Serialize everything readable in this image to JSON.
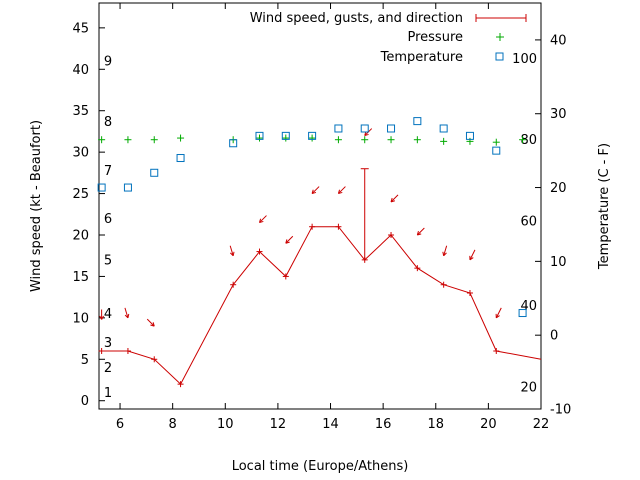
{
  "chart_data": {
    "type": "line",
    "xlabel": "Local time (Europe/Athens)",
    "ylabel": "Wind speed (kt - Beaufort)",
    "y2label": "Temperature (C - F)",
    "xlim": [
      5.2,
      22
    ],
    "ylim": [
      -1,
      48
    ],
    "y2lim": [
      -10,
      45
    ],
    "x_ticks": [
      6,
      8,
      10,
      12,
      14,
      16,
      18,
      20,
      22
    ],
    "y_ticks": [
      0,
      5,
      10,
      15,
      20,
      25,
      30,
      35,
      40,
      45
    ],
    "y2_ticks": [
      -10,
      0,
      10,
      20,
      30,
      40
    ],
    "beaufort_labels": [
      {
        "text": "1",
        "y": 1
      },
      {
        "text": "2",
        "y": 4
      },
      {
        "text": "3",
        "y": 7
      },
      {
        "text": "4",
        "y": 10.5
      },
      {
        "text": "5",
        "y": 17
      },
      {
        "text": "6",
        "y": 22
      },
      {
        "text": "7",
        "y": 27.8
      },
      {
        "text": "8",
        "y": 33.7
      },
      {
        "text": "9",
        "y": 41
      }
    ],
    "fahrenheit_labels": [
      {
        "text": "20",
        "y2": -7
      },
      {
        "text": "40",
        "y2": 4
      },
      {
        "text": "60",
        "y2": 15.5
      },
      {
        "text": "80",
        "y2": 26.5
      },
      {
        "text": "100",
        "y2": 37.5
      }
    ],
    "legend_position": "top-right",
    "series": [
      {
        "name": "Wind speed, gusts, and direction",
        "color": "#cc0000",
        "x": [
          5.3,
          6.3,
          7.3,
          8.3,
          10.3,
          11.3,
          12.3,
          13.3,
          14.3,
          15.3,
          16.3,
          17.3,
          18.3,
          19.3,
          20.3,
          22
        ],
        "y": [
          6,
          6,
          5,
          2,
          14,
          18,
          15,
          21,
          21,
          17,
          20,
          16,
          14,
          13,
          6,
          5
        ],
        "gusts": [
          {
            "x": 15.3,
            "from": 17,
            "to": 28
          }
        ],
        "direction_arrows": [
          {
            "x": 5.3,
            "y": 9.8,
            "dx": 0,
            "dy": 1
          },
          {
            "x": 6.3,
            "y": 10,
            "dx": 0.3,
            "dy": 1
          },
          {
            "x": 7.3,
            "y": 9,
            "dx": 0.7,
            "dy": 0.7
          },
          {
            "x": 10.3,
            "y": 17.5,
            "dx": 0.3,
            "dy": 1
          },
          {
            "x": 11.3,
            "y": 21.5,
            "dx": -0.7,
            "dy": 0.7
          },
          {
            "x": 12.3,
            "y": 19,
            "dx": -0.7,
            "dy": 0.7
          },
          {
            "x": 13.3,
            "y": 25,
            "dx": -0.7,
            "dy": 0.7
          },
          {
            "x": 14.3,
            "y": 25,
            "dx": -0.7,
            "dy": 0.7
          },
          {
            "x": 15.3,
            "y": 32,
            "dx": -0.7,
            "dy": 0.7
          },
          {
            "x": 16.3,
            "y": 24,
            "dx": -0.7,
            "dy": 0.7
          },
          {
            "x": 17.3,
            "y": 20,
            "dx": -0.7,
            "dy": 0.7
          },
          {
            "x": 18.3,
            "y": 17.5,
            "dx": -0.3,
            "dy": 1
          },
          {
            "x": 19.3,
            "y": 17,
            "dx": -0.5,
            "dy": 1
          },
          {
            "x": 20.3,
            "y": 10,
            "dx": -0.5,
            "dy": 1
          }
        ]
      },
      {
        "name": "Pressure",
        "color": "#00aa00",
        "marker": "plus",
        "axis": "y",
        "x": [
          5.3,
          6.3,
          7.3,
          8.3,
          10.3,
          11.3,
          12.3,
          13.3,
          14.3,
          15.3,
          16.3,
          17.3,
          18.3,
          19.3,
          20.3,
          21.3
        ],
        "y": [
          31.5,
          31.5,
          31.5,
          31.7,
          31.5,
          31.7,
          31.7,
          31.7,
          31.5,
          31.5,
          31.5,
          31.5,
          31.3,
          31.3,
          31.2,
          31.5
        ]
      },
      {
        "name": "Temperature",
        "color": "#0072bd",
        "marker": "square",
        "axis": "y2",
        "x": [
          5.3,
          6.3,
          7.3,
          8.3,
          10.3,
          11.3,
          12.3,
          13.3,
          14.3,
          15.3,
          16.3,
          17.3,
          18.3,
          19.3,
          20.3,
          21.3
        ],
        "y": [
          20,
          20,
          22,
          24,
          26,
          27,
          27,
          27,
          28,
          28,
          28,
          29,
          28,
          27,
          25,
          3
        ]
      }
    ]
  }
}
